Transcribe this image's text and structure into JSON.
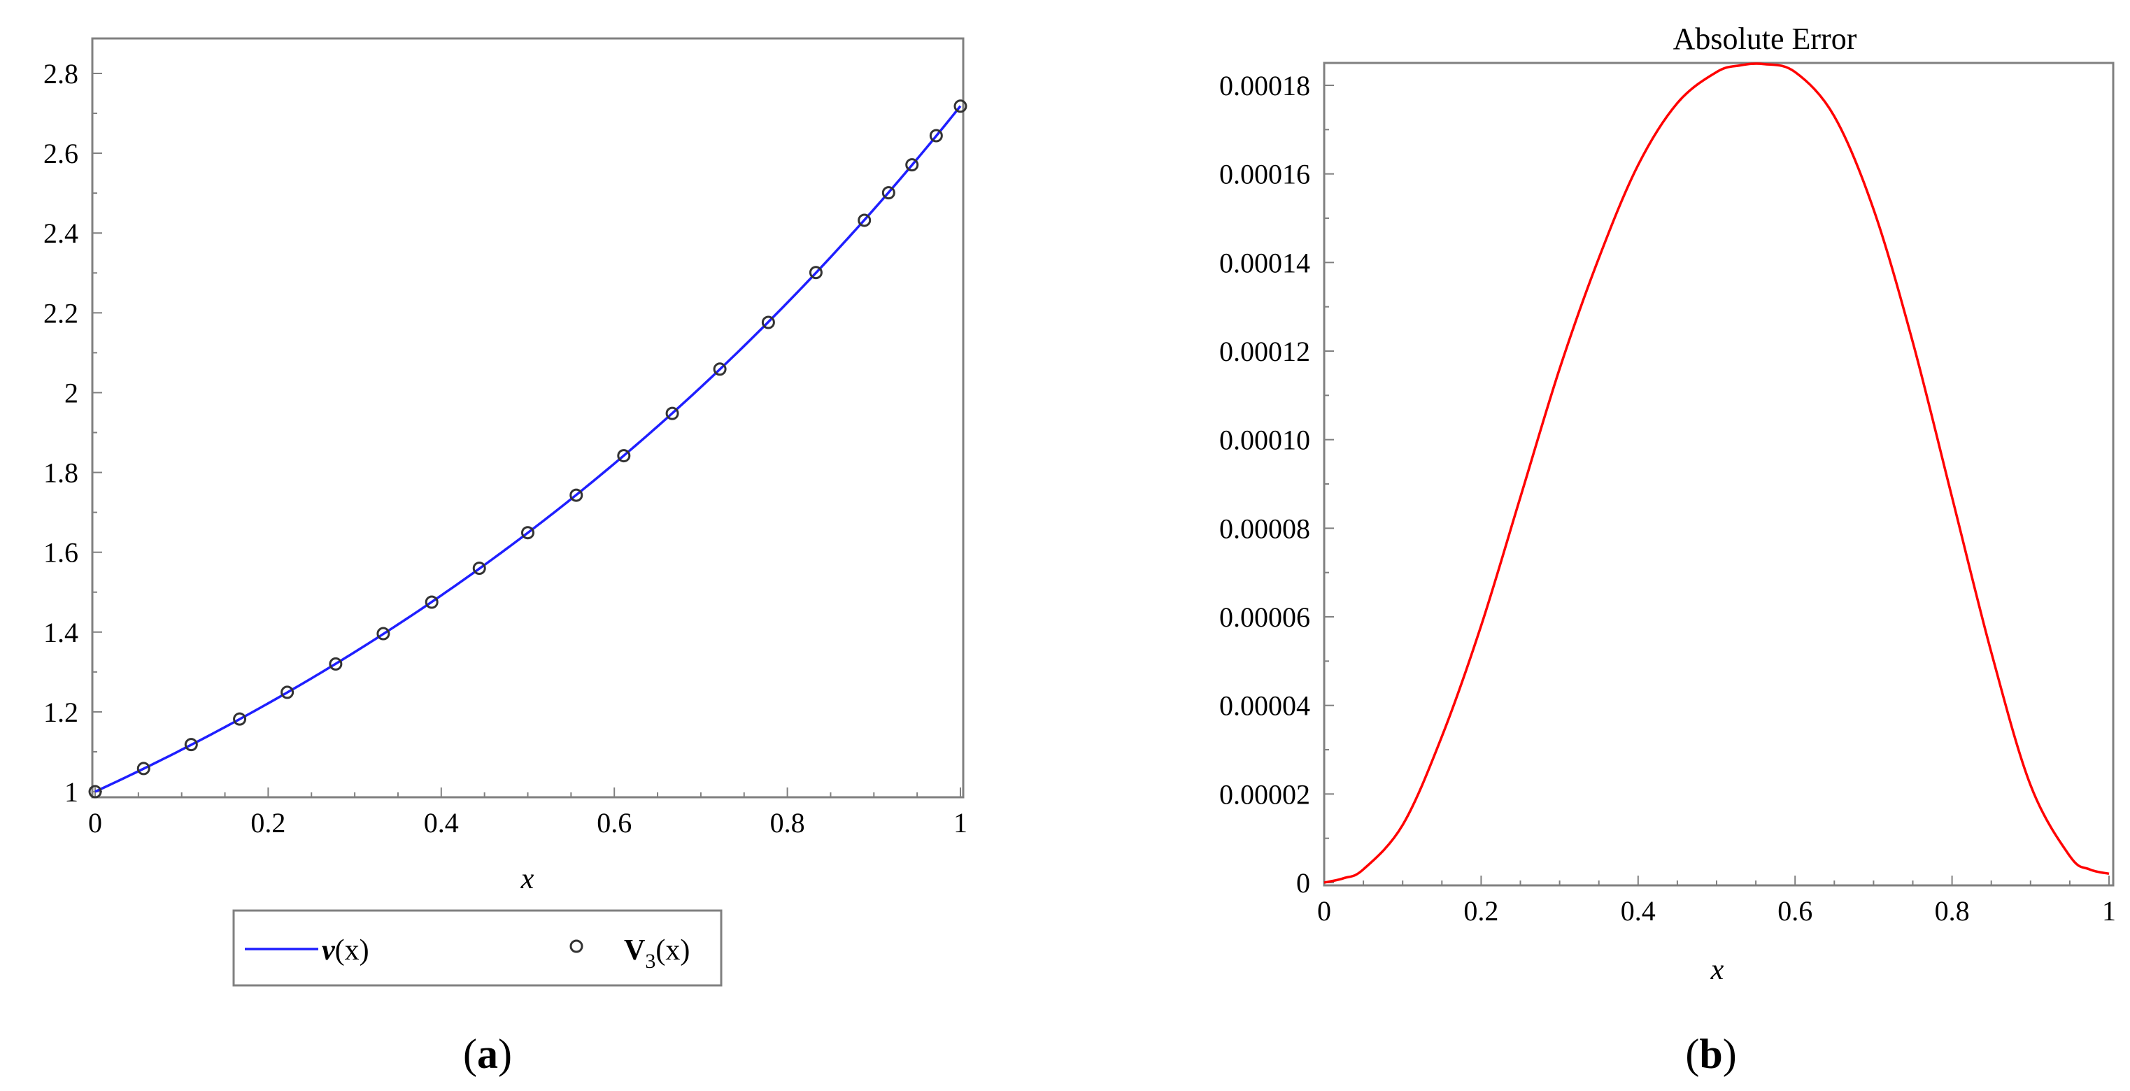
{
  "chart_data": [
    {
      "type": "scatter",
      "title": "",
      "xlabel": "x",
      "ylabel": "",
      "xlim": [
        0,
        1
      ],
      "ylim": [
        1,
        2.8
      ],
      "xticks": [
        "0",
        "0.2",
        "0.4",
        "0.6",
        "0.8",
        "1"
      ],
      "yticks": [
        "1",
        "1.2",
        "1.4",
        "1.6",
        "1.8",
        "2",
        "2.2",
        "2.4",
        "2.6",
        "2.8"
      ],
      "grid": false,
      "legend_position": "bottom",
      "series": [
        {
          "name": "v(x)",
          "kind": "line",
          "color": "#1f1fff",
          "function": "exp(x)"
        },
        {
          "name": "V3(x)",
          "kind": "markers",
          "marker": "circle",
          "color": "#333333",
          "x": [
            0,
            0.056,
            0.111,
            0.167,
            0.222,
            0.278,
            0.333,
            0.389,
            0.444,
            0.5,
            0.556,
            0.611,
            0.667,
            0.722,
            0.778,
            0.833,
            0.889,
            0.917,
            0.944,
            0.972,
            1.0
          ],
          "y": [
            1.0,
            1.058,
            1.118,
            1.182,
            1.249,
            1.32,
            1.396,
            1.475,
            1.56,
            1.649,
            1.743,
            1.842,
            1.948,
            2.059,
            2.176,
            2.301,
            2.432,
            2.501,
            2.571,
            2.644,
            2.718
          ]
        }
      ],
      "legend": {
        "line_label": {
          "italic": "v",
          "rest": "(x)"
        },
        "marker_label": {
          "bold": "V",
          "sub": "3",
          "rest": "(x)"
        }
      },
      "panel_label": {
        "open": "(",
        "letter": "a",
        "close": ")"
      }
    },
    {
      "type": "line",
      "title": "Absolute Error",
      "xlabel": "x",
      "ylabel": "",
      "xlim": [
        0,
        1
      ],
      "ylim": [
        0,
        0.000185
      ],
      "xticks": [
        "0",
        "0.2",
        "0.4",
        "0.6",
        "0.8",
        "1"
      ],
      "yticks": [
        "0",
        "0.00002",
        "0.00004",
        "0.00006",
        "0.00008",
        "0.00010",
        "0.00012",
        "0.00014",
        "0.00016",
        "0.00018"
      ],
      "grid": false,
      "series": [
        {
          "name": "",
          "color": "#ff0000",
          "x": [
            0,
            0.025,
            0.05,
            0.1,
            0.15,
            0.2,
            0.25,
            0.3,
            0.35,
            0.4,
            0.45,
            0.5,
            0.53,
            0.56,
            0.6,
            0.65,
            0.7,
            0.75,
            0.8,
            0.85,
            0.9,
            0.95,
            0.975,
            1.0
          ],
          "y": [
            0,
            1e-06,
            3e-06,
            1.3e-05,
            3.3e-05,
            5.8e-05,
            8.7e-05,
            0.000116,
            0.000141,
            0.000162,
            0.000176,
            0.000183,
            0.0001845,
            0.0001848,
            0.000183,
            0.000173,
            0.000152,
            0.000122,
            8.7e-05,
            5.2e-05,
            2.2e-05,
            6e-06,
            3e-06,
            2e-06
          ]
        }
      ],
      "panel_label": {
        "open": "(",
        "letter": "b",
        "close": ")"
      }
    }
  ]
}
